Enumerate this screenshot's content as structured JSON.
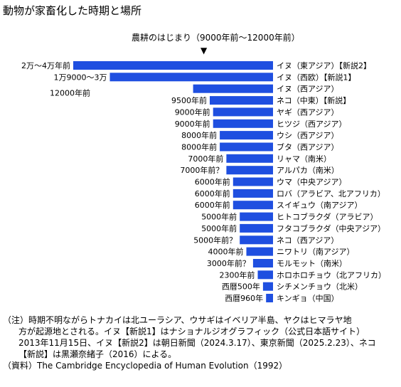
{
  "title": "動物が家畜化した時期と場所",
  "annotation": "農耕のはじまり（9000年前〜12000年前）",
  "marker": "▼",
  "chart_data": {
    "type": "bar",
    "orientation": "horizontal",
    "value_direction": "extends to the left",
    "unit": "years before present (approx.)",
    "bar_color": "#1f4fe0",
    "items": [
      {
        "period": "2万〜4万年前",
        "label": "イヌ（東アジア）【新説2】",
        "value": 30000
      },
      {
        "period": "1万9000〜3万",
        "label": "イヌ（西欧）【新説1】",
        "value": 24500
      },
      {
        "period": "12000年前",
        "label": "イヌ（西アジア）",
        "value": 12000
      },
      {
        "period": "9500年前",
        "label": "ネコ（中東）【新説】",
        "value": 9500
      },
      {
        "period": "9000年前",
        "label": "ヤギ（西アジア）",
        "value": 9000
      },
      {
        "period": "9000年前",
        "label": "ヒツジ（西アジア）",
        "value": 9000
      },
      {
        "period": "8000年前",
        "label": "ウシ（西アジア）",
        "value": 8000
      },
      {
        "period": "8000年前",
        "label": "ブタ（西アジア）",
        "value": 8000
      },
      {
        "period": "7000年前",
        "label": "リャマ（南米）",
        "value": 7000
      },
      {
        "period": "7000年前？",
        "label": "アルパカ（南米）",
        "value": 7000
      },
      {
        "period": "6000年前",
        "label": "ウマ（中央アジア）",
        "value": 6000
      },
      {
        "period": "6000年前",
        "label": "ロバ（アラビア、北アフリカ）",
        "value": 6000
      },
      {
        "period": "6000年前",
        "label": "スイギュウ（南アジア）",
        "value": 6000
      },
      {
        "period": "5000年前",
        "label": "ヒトコブラクダ（アラビア）",
        "value": 5000
      },
      {
        "period": "5000年前",
        "label": "フタコブラクダ（中央アジア）",
        "value": 5000
      },
      {
        "period": "5000年前？",
        "label": "ネコ（西アジア）",
        "value": 5000
      },
      {
        "period": "4000年前",
        "label": "ニワトリ（南アジア）",
        "value": 4000
      },
      {
        "period": "3000年前？",
        "label": "モルモット（南米）",
        "value": 3000
      },
      {
        "period": "2300年前",
        "label": "ホロホロチョウ（北アフリカ）",
        "value": 2300
      },
      {
        "period": "西暦500年",
        "label": "シチメンチョウ（北米）",
        "value": 1500
      },
      {
        "period": "西暦960年",
        "label": "キンギョ（中国）",
        "value": 1050
      }
    ]
  },
  "notes": [
    "（注）時期不明ながらトナカイは北ユーラシア、ウサギはイベリア半島、ヤクはヒマラヤ地",
    "方が起源地とされる。イヌ【新説1】はナショナルジオグラフィック（公式日本語サイト）",
    "2013年11月15日、イヌ【新説2】は朝日新聞（2024.3.17）、東京新聞（2025.2.23）、ネコ",
    "【新説】は黒瀬奈緒子（2016）による。",
    "（資料）The Cambridge Encyclopedia of Human Evolution（1992）"
  ]
}
